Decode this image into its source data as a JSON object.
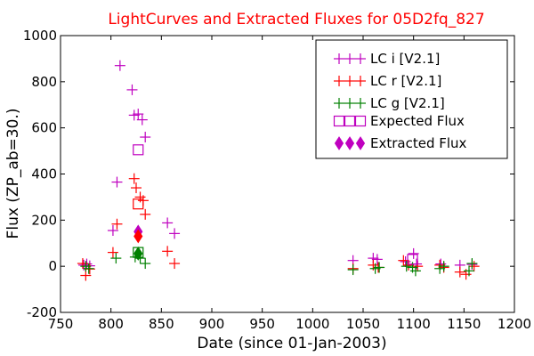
{
  "chart_data": {
    "type": "scatter",
    "title": "LightCurves and Extracted Fluxes for 05D2fq_827",
    "xlabel": "Date (since 01-Jan-2003)",
    "ylabel": "Flux (ZP_ab=30.)",
    "xlim": [
      750,
      1200
    ],
    "ylim": [
      -200,
      1000
    ],
    "x_ticks": [
      "750",
      "800",
      "850",
      "900",
      "950",
      "1000",
      "1050",
      "1100",
      "1150",
      "1200"
    ],
    "y_ticks": [
      "-200",
      "0",
      "200",
      "400",
      "600",
      "800",
      "1000"
    ],
    "grid": false,
    "legend_position": "top-right",
    "title_color": "#ff0000",
    "series": [
      {
        "name": "LC i [V2.1]",
        "marker": "plus",
        "color": "#bf00bf",
        "points": [
          {
            "x": 773,
            "y": 5
          },
          {
            "x": 776,
            "y": 10
          },
          {
            "x": 779,
            "y": 2
          },
          {
            "x": 802,
            "y": 155
          },
          {
            "x": 806,
            "y": 365
          },
          {
            "x": 809,
            "y": 870
          },
          {
            "x": 821,
            "y": 765
          },
          {
            "x": 823,
            "y": 655
          },
          {
            "x": 827,
            "y": 660
          },
          {
            "x": 831,
            "y": 635
          },
          {
            "x": 834,
            "y": 560
          },
          {
            "x": 856,
            "y": 188
          },
          {
            "x": 863,
            "y": 142
          },
          {
            "x": 1040,
            "y": 25
          },
          {
            "x": 1060,
            "y": 35
          },
          {
            "x": 1064,
            "y": 30
          },
          {
            "x": 1092,
            "y": 20
          },
          {
            "x": 1100,
            "y": 55
          },
          {
            "x": 1103,
            "y": 10
          },
          {
            "x": 1127,
            "y": 10
          },
          {
            "x": 1146,
            "y": 5
          },
          {
            "x": 1158,
            "y": 8
          }
        ]
      },
      {
        "name": "LC r [V2.1]",
        "marker": "plus",
        "color": "#ff0000",
        "points": [
          {
            "x": 772,
            "y": 12
          },
          {
            "x": 775,
            "y": -40
          },
          {
            "x": 779,
            "y": -12
          },
          {
            "x": 802,
            "y": 60
          },
          {
            "x": 806,
            "y": 183
          },
          {
            "x": 823,
            "y": 380
          },
          {
            "x": 825,
            "y": 340
          },
          {
            "x": 829,
            "y": 300
          },
          {
            "x": 832,
            "y": 285
          },
          {
            "x": 834,
            "y": 225
          },
          {
            "x": 856,
            "y": 65
          },
          {
            "x": 863,
            "y": 12
          },
          {
            "x": 1040,
            "y": -10
          },
          {
            "x": 1060,
            "y": 5
          },
          {
            "x": 1065,
            "y": -5
          },
          {
            "x": 1090,
            "y": 25
          },
          {
            "x": 1095,
            "y": 5
          },
          {
            "x": 1104,
            "y": 0
          },
          {
            "x": 1126,
            "y": 5
          },
          {
            "x": 1130,
            "y": -5
          },
          {
            "x": 1146,
            "y": -25
          },
          {
            "x": 1152,
            "y": -35
          },
          {
            "x": 1160,
            "y": 0
          }
        ]
      },
      {
        "name": "LC g [V2.1]",
        "marker": "plus",
        "color": "#008000",
        "points": [
          {
            "x": 775,
            "y": 0
          },
          {
            "x": 778,
            "y": -10
          },
          {
            "x": 805,
            "y": 35
          },
          {
            "x": 824,
            "y": 40
          },
          {
            "x": 829,
            "y": 35
          },
          {
            "x": 834,
            "y": 12
          },
          {
            "x": 1040,
            "y": -15
          },
          {
            "x": 1062,
            "y": -10
          },
          {
            "x": 1066,
            "y": -5
          },
          {
            "x": 1093,
            "y": 0
          },
          {
            "x": 1099,
            "y": -5
          },
          {
            "x": 1102,
            "y": -20
          },
          {
            "x": 1126,
            "y": -10
          },
          {
            "x": 1130,
            "y": 0
          },
          {
            "x": 1155,
            "y": -20
          },
          {
            "x": 1158,
            "y": 12
          }
        ]
      },
      {
        "name": "Expected Flux",
        "marker": "square",
        "color": "#bf00bf",
        "red_color": "#ff0000",
        "green_color": "#008000",
        "points": [
          {
            "x": 827,
            "y": 505,
            "band": "i"
          },
          {
            "x": 827,
            "y": 270,
            "band": "r"
          },
          {
            "x": 827,
            "y": 60,
            "band": "g"
          },
          {
            "x": 1099,
            "y": 30,
            "band": "i"
          }
        ]
      },
      {
        "name": "Extracted Flux",
        "marker": "diamond",
        "color": "#bf00bf",
        "red_color": "#ff0000",
        "green_color": "#008000",
        "points": [
          {
            "x": 827,
            "y": 150,
            "band": "i"
          },
          {
            "x": 827,
            "y": 130,
            "band": "r"
          },
          {
            "x": 827,
            "y": 55,
            "band": "g"
          }
        ]
      }
    ]
  }
}
